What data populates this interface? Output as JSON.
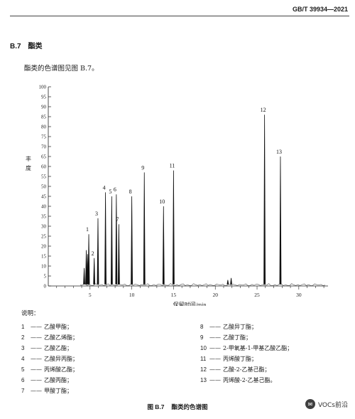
{
  "header": {
    "standard_code": "GB/T  39934—2021"
  },
  "section": {
    "number": "B.7",
    "title": "酯类"
  },
  "intro_text": "酯类的色谱图见图 B.7。",
  "chart_data": {
    "type": "line",
    "ylabel_chars": [
      "丰",
      "度"
    ],
    "xlabel": "保留时间/min",
    "xlim": [
      0,
      33.5
    ],
    "ylim": [
      0,
      100
    ],
    "x_ticks": [
      5,
      10,
      15,
      20,
      25,
      30
    ],
    "y_ticks": [
      0,
      5,
      10,
      15,
      20,
      25,
      30,
      35,
      40,
      45,
      50,
      55,
      60,
      65,
      70,
      75,
      80,
      85,
      90,
      95,
      100
    ],
    "grid": false,
    "peaks": [
      {
        "label": "1",
        "x": 4.85,
        "y": 26
      },
      {
        "label": "2",
        "x": 5.5,
        "y": 14
      },
      {
        "label": "3",
        "x": 5.95,
        "y": 34
      },
      {
        "label": "4",
        "x": 6.85,
        "y": 47
      },
      {
        "label": "5",
        "x": 7.6,
        "y": 45
      },
      {
        "label": "6",
        "x": 8.15,
        "y": 46
      },
      {
        "label": "7",
        "x": 8.45,
        "y": 31
      },
      {
        "label": "8",
        "x": 10.0,
        "y": 45
      },
      {
        "label": "9",
        "x": 11.5,
        "y": 57
      },
      {
        "label": "10",
        "x": 13.8,
        "y": 40
      },
      {
        "label": "11",
        "x": 15.0,
        "y": 58
      },
      {
        "label": "12",
        "x": 25.9,
        "y": 86
      },
      {
        "label": "13",
        "x": 27.8,
        "y": 65
      }
    ],
    "minor_peaks": [
      {
        "x": 4.3,
        "y": 9
      },
      {
        "x": 4.55,
        "y": 18
      },
      {
        "x": 4.7,
        "y": 16
      },
      {
        "x": 21.5,
        "y": 3
      },
      {
        "x": 21.9,
        "y": 4
      }
    ]
  },
  "legend": {
    "heading": "说明：",
    "left": [
      {
        "n": "1",
        "name": "乙酸甲酯；"
      },
      {
        "n": "2",
        "name": "乙酸乙烯酯；"
      },
      {
        "n": "3",
        "name": "乙酸乙酯；"
      },
      {
        "n": "4",
        "name": "乙酸异丙酯；"
      },
      {
        "n": "5",
        "name": "丙烯酸乙酯；"
      },
      {
        "n": "6",
        "name": "乙酸丙酯；"
      },
      {
        "n": "7",
        "name": "甲酸丁酯；"
      }
    ],
    "right": [
      {
        "n": "8",
        "name": "乙酸异丁酯；"
      },
      {
        "n": "9",
        "name": "乙酸丁酯；"
      },
      {
        "n": "10",
        "name": "2-甲氧基-1-甲基乙酸乙酯；"
      },
      {
        "n": "11",
        "name": "丙烯酸丁酯；"
      },
      {
        "n": "12",
        "name": "乙酸-2-乙基己酯；"
      },
      {
        "n": "13",
        "name": "丙烯酸-2-乙基己酯。"
      }
    ]
  },
  "caption": {
    "figure": "图 B.7",
    "title": "酯类的色谱图"
  },
  "watermark": {
    "text": "VOCs前沿"
  }
}
